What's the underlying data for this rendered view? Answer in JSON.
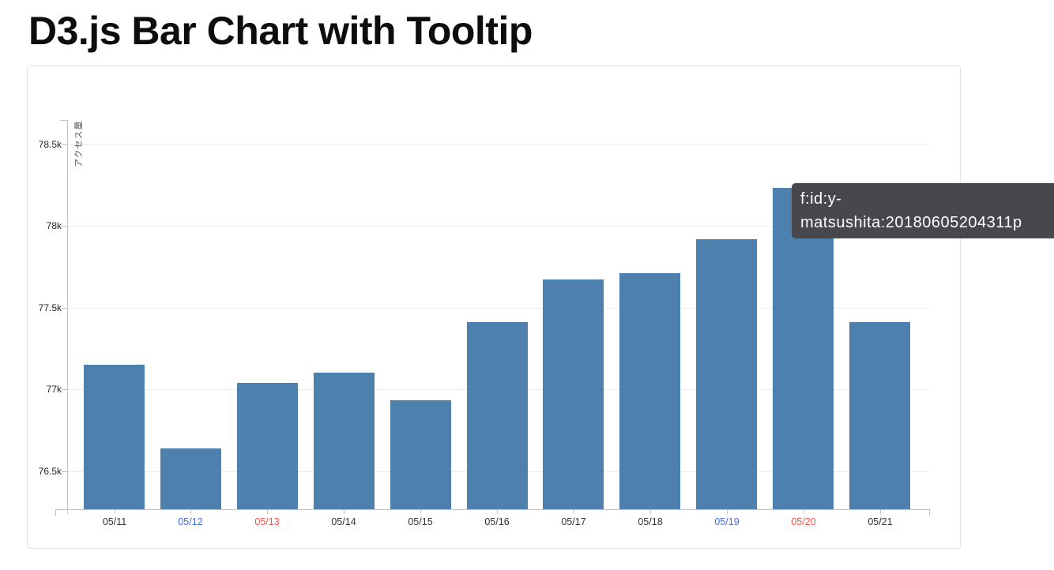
{
  "page_title": "D3.js Bar Chart with Tooltip",
  "tooltip": {
    "lines": [
      "f:id:y-",
      "matsushita:20180605204311p"
    ],
    "bg_color": "#48474d",
    "text_color": "#ffffff"
  },
  "chart_data": {
    "type": "bar",
    "title": "D3.js Bar Chart with Tooltip",
    "categories": [
      "05/11",
      "05/12",
      "05/13",
      "05/14",
      "05/15",
      "05/16",
      "05/17",
      "05/18",
      "05/19",
      "05/20",
      "05/21"
    ],
    "values": [
      77150,
      76640,
      77040,
      77100,
      76930,
      77410,
      77670,
      77710,
      77920,
      78230,
      77410
    ],
    "x_label_colors": [
      "#333338",
      "#4169e1",
      "#f2544a",
      "#333338",
      "#333338",
      "#333338",
      "#333338",
      "#333338",
      "#4169e1",
      "#f2544a",
      "#333338"
    ],
    "xlabel": "",
    "ylabel": "アクセス量",
    "yticks": [
      {
        "value": 76500,
        "label": "76.5k"
      },
      {
        "value": 77000,
        "label": "77k"
      },
      {
        "value": 77500,
        "label": "77.5k"
      },
      {
        "value": 78000,
        "label": "78k"
      },
      {
        "value": 78500,
        "label": "78.5k"
      }
    ],
    "ylim": [
      76266,
      78650
    ],
    "bar_color": "#4e80ad",
    "grid": true,
    "legend_position": "none"
  }
}
